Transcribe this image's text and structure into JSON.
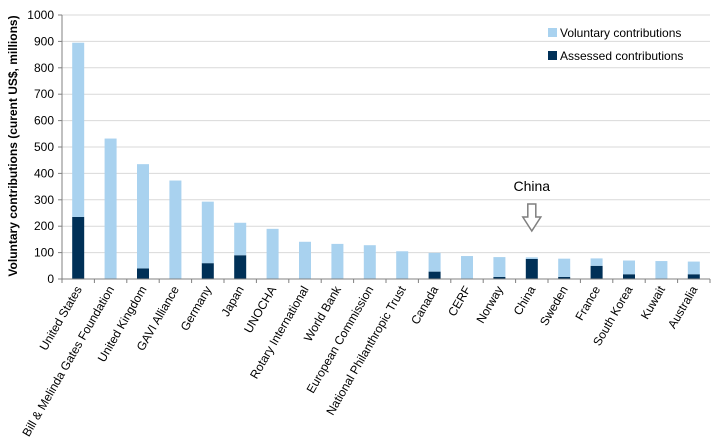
{
  "chart_data": {
    "type": "bar",
    "stacked": true,
    "ylabel": "Voluntary contributions (curent US$, millions)",
    "xlabel": "",
    "ylim": [
      0,
      1000
    ],
    "yticks": [
      0,
      100,
      200,
      300,
      400,
      500,
      600,
      700,
      800,
      900,
      1000
    ],
    "grid": true,
    "legend_position": "top-right",
    "categories": [
      "United States",
      "Bill & Melinda Gates Foundation",
      "United Kingdom",
      "GAVI Alliance",
      "Germany",
      "Japan",
      "UNOCHA",
      "Rotary International",
      "World Bank",
      "European Commission",
      "National Philanthropic Trust",
      "Canada",
      "CERF",
      "Norway",
      "China",
      "Sweden",
      "France",
      "South Korea",
      "Kuwait",
      "Australia"
    ],
    "series": [
      {
        "name": "Assessed contributions",
        "color": "#003057",
        "values": [
          235,
          0,
          40,
          0,
          60,
          90,
          0,
          0,
          0,
          0,
          0,
          28,
          0,
          8,
          76,
          8,
          50,
          18,
          0,
          18
        ]
      },
      {
        "name": "Voluntary contributions",
        "color": "#a9d2ef",
        "values": [
          660,
          532,
          395,
          373,
          233,
          123,
          190,
          141,
          133,
          128,
          105,
          71,
          87,
          75,
          6,
          69,
          28,
          52,
          68,
          48
        ]
      }
    ],
    "annotation": {
      "label": "China",
      "target_category": "China",
      "icon": "down-arrow-icon"
    }
  }
}
